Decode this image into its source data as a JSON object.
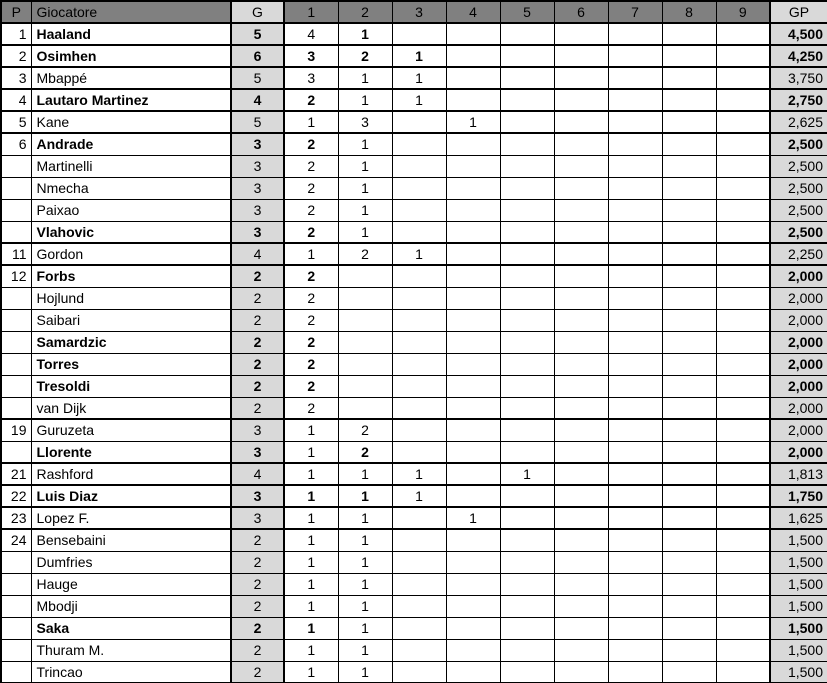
{
  "colors": {
    "header_bg": "#808080",
    "shade_bg": "#d9d9d9",
    "border": "#000000",
    "text": "#000000",
    "page_bg": "#ffffff"
  },
  "table": {
    "headers": [
      "P",
      "Giocatore",
      "G",
      "1",
      "2",
      "3",
      "4",
      "5",
      "6",
      "7",
      "8",
      "9",
      "GP"
    ],
    "bold_marker": "!",
    "rows": [
      {
        "rank": "1",
        "name": "Haaland",
        "name_bold": true,
        "g": "5",
        "g_bold": true,
        "cells": [
          "4",
          "1!",
          "",
          "",
          "",
          "",
          "",
          "",
          ""
        ],
        "gp": "4,500",
        "gp_bold": true
      },
      {
        "rank": "2",
        "name": "Osimhen",
        "name_bold": true,
        "g": "6",
        "g_bold": true,
        "cells": [
          "3!",
          "2!",
          "1!",
          "",
          "",
          "",
          "",
          "",
          ""
        ],
        "gp": "4,250",
        "gp_bold": true
      },
      {
        "rank": "3",
        "name": "Mbappé",
        "name_bold": false,
        "g": "5",
        "g_bold": false,
        "cells": [
          "3",
          "1",
          "1",
          "",
          "",
          "",
          "",
          "",
          ""
        ],
        "gp": "3,750",
        "gp_bold": false
      },
      {
        "rank": "4",
        "name": "Lautaro Martinez",
        "name_bold": true,
        "g": "4",
        "g_bold": true,
        "cells": [
          "2!",
          "1",
          "1",
          "",
          "",
          "",
          "",
          "",
          ""
        ],
        "gp": "2,750",
        "gp_bold": true
      },
      {
        "rank": "5",
        "name": "Kane",
        "name_bold": false,
        "g": "5",
        "g_bold": false,
        "cells": [
          "1",
          "3",
          "",
          "1",
          "",
          "",
          "",
          "",
          ""
        ],
        "gp": "2,625",
        "gp_bold": false
      },
      {
        "rank": "6",
        "name": "Andrade",
        "name_bold": true,
        "g": "3",
        "g_bold": true,
        "cells": [
          "2!",
          "1",
          "",
          "",
          "",
          "",
          "",
          "",
          ""
        ],
        "gp": "2,500",
        "gp_bold": true
      },
      {
        "rank": "",
        "name": "Martinelli",
        "name_bold": false,
        "g": "3",
        "g_bold": false,
        "cells": [
          "2",
          "1",
          "",
          "",
          "",
          "",
          "",
          "",
          ""
        ],
        "gp": "2,500",
        "gp_bold": false
      },
      {
        "rank": "",
        "name": "Nmecha",
        "name_bold": false,
        "g": "3",
        "g_bold": false,
        "cells": [
          "2",
          "1",
          "",
          "",
          "",
          "",
          "",
          "",
          ""
        ],
        "gp": "2,500",
        "gp_bold": false
      },
      {
        "rank": "",
        "name": "Paixao",
        "name_bold": false,
        "g": "3",
        "g_bold": false,
        "cells": [
          "2",
          "1",
          "",
          "",
          "",
          "",
          "",
          "",
          ""
        ],
        "gp": "2,500",
        "gp_bold": false
      },
      {
        "rank": "",
        "name": "Vlahovic",
        "name_bold": true,
        "g": "3",
        "g_bold": true,
        "cells": [
          "2!",
          "1",
          "",
          "",
          "",
          "",
          "",
          "",
          ""
        ],
        "gp": "2,500",
        "gp_bold": true
      },
      {
        "rank": "11",
        "name": "Gordon",
        "name_bold": false,
        "g": "4",
        "g_bold": false,
        "cells": [
          "1",
          "2",
          "1",
          "",
          "",
          "",
          "",
          "",
          ""
        ],
        "gp": "2,250",
        "gp_bold": false
      },
      {
        "rank": "12",
        "name": "Forbs",
        "name_bold": true,
        "g": "2",
        "g_bold": true,
        "cells": [
          "2!",
          "",
          "",
          "",
          "",
          "",
          "",
          "",
          ""
        ],
        "gp": "2,000",
        "gp_bold": true
      },
      {
        "rank": "",
        "name": "Hojlund",
        "name_bold": false,
        "g": "2",
        "g_bold": false,
        "cells": [
          "2",
          "",
          "",
          "",
          "",
          "",
          "",
          "",
          ""
        ],
        "gp": "2,000",
        "gp_bold": false
      },
      {
        "rank": "",
        "name": "Saibari",
        "name_bold": false,
        "g": "2",
        "g_bold": false,
        "cells": [
          "2",
          "",
          "",
          "",
          "",
          "",
          "",
          "",
          ""
        ],
        "gp": "2,000",
        "gp_bold": false
      },
      {
        "rank": "",
        "name": "Samardzic",
        "name_bold": true,
        "g": "2",
        "g_bold": true,
        "cells": [
          "2!",
          "",
          "",
          "",
          "",
          "",
          "",
          "",
          ""
        ],
        "gp": "2,000",
        "gp_bold": true
      },
      {
        "rank": "",
        "name": "Torres",
        "name_bold": true,
        "g": "2",
        "g_bold": true,
        "cells": [
          "2!",
          "",
          "",
          "",
          "",
          "",
          "",
          "",
          ""
        ],
        "gp": "2,000",
        "gp_bold": true
      },
      {
        "rank": "",
        "name": "Tresoldi",
        "name_bold": true,
        "g": "2",
        "g_bold": true,
        "cells": [
          "2!",
          "",
          "",
          "",
          "",
          "",
          "",
          "",
          ""
        ],
        "gp": "2,000",
        "gp_bold": true
      },
      {
        "rank": "",
        "name": "van Dijk",
        "name_bold": false,
        "g": "2",
        "g_bold": false,
        "cells": [
          "2",
          "",
          "",
          "",
          "",
          "",
          "",
          "",
          ""
        ],
        "gp": "2,000",
        "gp_bold": false
      },
      {
        "rank": "19",
        "name": "Guruzeta",
        "name_bold": false,
        "g": "3",
        "g_bold": false,
        "cells": [
          "1",
          "2",
          "",
          "",
          "",
          "",
          "",
          "",
          ""
        ],
        "gp": "2,000",
        "gp_bold": false
      },
      {
        "rank": "",
        "name": "Llorente",
        "name_bold": true,
        "g": "3",
        "g_bold": true,
        "cells": [
          "1",
          "2!",
          "",
          "",
          "",
          "",
          "",
          "",
          ""
        ],
        "gp": "2,000",
        "gp_bold": true
      },
      {
        "rank": "21",
        "name": "Rashford",
        "name_bold": false,
        "g": "4",
        "g_bold": false,
        "cells": [
          "1",
          "1",
          "1",
          "",
          "1",
          "",
          "",
          "",
          ""
        ],
        "gp": "1,813",
        "gp_bold": false
      },
      {
        "rank": "22",
        "name": "Luis Diaz",
        "name_bold": true,
        "g": "3",
        "g_bold": true,
        "cells": [
          "1!",
          "1!",
          "1",
          "",
          "",
          "",
          "",
          "",
          ""
        ],
        "gp": "1,750",
        "gp_bold": true
      },
      {
        "rank": "23",
        "name": "Lopez F.",
        "name_bold": false,
        "g": "3",
        "g_bold": false,
        "cells": [
          "1",
          "1",
          "",
          "1",
          "",
          "",
          "",
          "",
          ""
        ],
        "gp": "1,625",
        "gp_bold": false
      },
      {
        "rank": "24",
        "name": "Bensebaini",
        "name_bold": false,
        "g": "2",
        "g_bold": false,
        "cells": [
          "1",
          "1",
          "",
          "",
          "",
          "",
          "",
          "",
          ""
        ],
        "gp": "1,500",
        "gp_bold": false
      },
      {
        "rank": "",
        "name": "Dumfries",
        "name_bold": false,
        "g": "2",
        "g_bold": false,
        "cells": [
          "1",
          "1",
          "",
          "",
          "",
          "",
          "",
          "",
          ""
        ],
        "gp": "1,500",
        "gp_bold": false
      },
      {
        "rank": "",
        "name": "Hauge",
        "name_bold": false,
        "g": "2",
        "g_bold": false,
        "cells": [
          "1",
          "1",
          "",
          "",
          "",
          "",
          "",
          "",
          ""
        ],
        "gp": "1,500",
        "gp_bold": false
      },
      {
        "rank": "",
        "name": "Mbodji",
        "name_bold": false,
        "g": "2",
        "g_bold": false,
        "cells": [
          "1",
          "1",
          "",
          "",
          "",
          "",
          "",
          "",
          ""
        ],
        "gp": "1,500",
        "gp_bold": false
      },
      {
        "rank": "",
        "name": "Saka",
        "name_bold": true,
        "g": "2",
        "g_bold": true,
        "cells": [
          "1!",
          "1",
          "",
          "",
          "",
          "",
          "",
          "",
          ""
        ],
        "gp": "1,500",
        "gp_bold": true
      },
      {
        "rank": "",
        "name": "Thuram M.",
        "name_bold": false,
        "g": "2",
        "g_bold": false,
        "cells": [
          "1",
          "1",
          "",
          "",
          "",
          "",
          "",
          "",
          ""
        ],
        "gp": "1,500",
        "gp_bold": false
      },
      {
        "rank": "",
        "name": "Trincao",
        "name_bold": false,
        "g": "2",
        "g_bold": false,
        "cells": [
          "1",
          "1",
          "",
          "",
          "",
          "",
          "",
          "",
          ""
        ],
        "gp": "1,500",
        "gp_bold": false
      }
    ]
  }
}
